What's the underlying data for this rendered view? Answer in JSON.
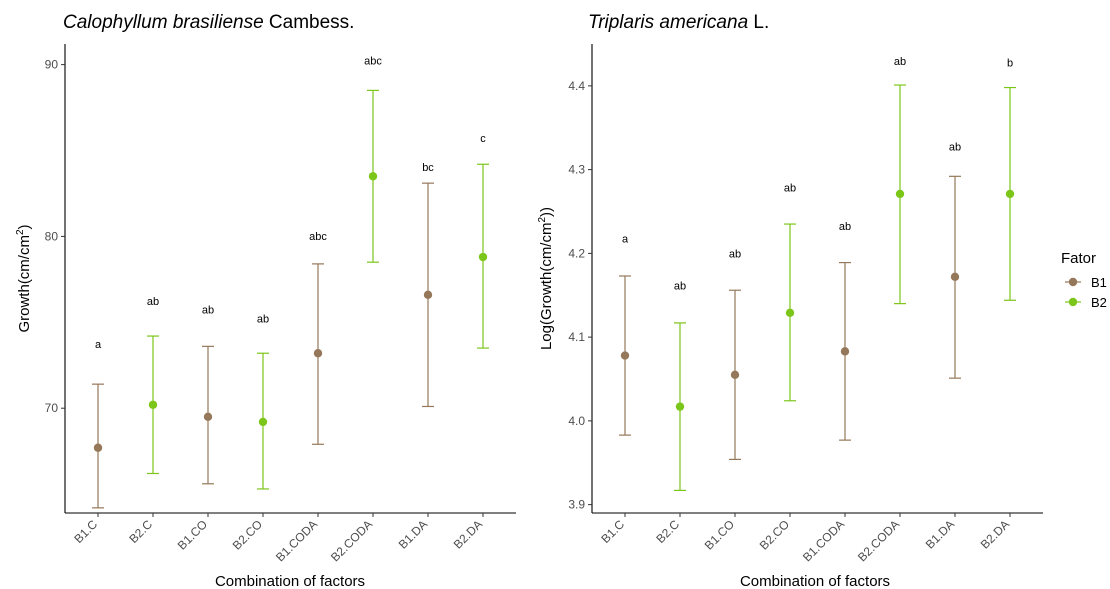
{
  "colors": {
    "B1": "#957859",
    "B2": "#7cc61a"
  },
  "legend": {
    "title": "Fator",
    "items": [
      {
        "key": "B1",
        "label": "B1"
      },
      {
        "key": "B2",
        "label": "B2"
      }
    ]
  },
  "chart_data": [
    {
      "type": "scatter",
      "title_italic": "Calophyllum brasiliense",
      "title_rest": "Cambess.",
      "xlabel": "Combination of factors",
      "ylabel_main": "Growth(cm/cm",
      "ylabel_sup": "2",
      "ylabel_end": ")",
      "ylim": [
        63.9,
        91.2
      ],
      "yticks": [
        70,
        80,
        90
      ],
      "categories": [
        "B1.C",
        "B2.C",
        "B1.CO",
        "B2.CO",
        "B1.CODA",
        "B2.CODA",
        "B1.DA",
        "B2.DA"
      ],
      "groups": [
        "B1",
        "B2",
        "B1",
        "B2",
        "B1",
        "B2",
        "B1",
        "B2"
      ],
      "means": [
        67.7,
        70.2,
        69.5,
        69.2,
        73.2,
        83.5,
        76.6,
        78.8
      ],
      "lower": [
        64.2,
        66.2,
        65.6,
        65.3,
        67.9,
        78.5,
        70.1,
        73.5
      ],
      "upper": [
        71.4,
        74.2,
        73.6,
        73.2,
        78.4,
        88.5,
        83.1,
        84.2
      ],
      "letters": [
        "a",
        "ab",
        "ab",
        "ab",
        "abc",
        "abc",
        "bc",
        "c"
      ],
      "letter_y": [
        73.5,
        76.0,
        75.5,
        75.0,
        79.8,
        90.0,
        83.8,
        85.5
      ]
    },
    {
      "type": "scatter",
      "title_italic": "Triplaris americana",
      "title_rest": "L.",
      "xlabel": "Combination of factors",
      "ylabel_main": "Log(Growth(cm/cm",
      "ylabel_sup": "2",
      "ylabel_end": "))",
      "ylim": [
        3.89,
        4.45
      ],
      "yticks": [
        3.9,
        4.0,
        4.1,
        4.2,
        4.3,
        4.4
      ],
      "categories": [
        "B1.C",
        "B2.C",
        "B1.CO",
        "B2.CO",
        "B1.CODA",
        "B2.CODA",
        "B1.DA",
        "B2.DA"
      ],
      "groups": [
        "B1",
        "B2",
        "B1",
        "B2",
        "B1",
        "B2",
        "B1",
        "B2"
      ],
      "means": [
        4.078,
        4.017,
        4.055,
        4.129,
        4.083,
        4.271,
        4.172,
        4.271
      ],
      "lower": [
        3.983,
        3.917,
        3.954,
        4.024,
        3.977,
        4.14,
        4.051,
        4.144
      ],
      "upper": [
        4.173,
        4.117,
        4.156,
        4.235,
        4.189,
        4.401,
        4.292,
        4.398
      ],
      "letters": [
        "a",
        "ab",
        "ab",
        "ab",
        "ab",
        "ab",
        "ab",
        "b"
      ],
      "letter_y": [
        4.213,
        4.157,
        4.195,
        4.274,
        4.228,
        4.425,
        4.323,
        4.423
      ]
    }
  ]
}
